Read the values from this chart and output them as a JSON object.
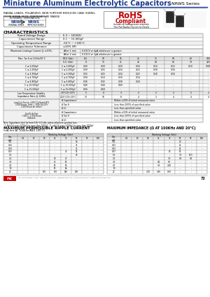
{
  "title": "Miniature Aluminum Electrolytic Capacitors",
  "series": "NRWS Series",
  "subtitle1": "RADIAL LEADS, POLARIZED, NEW FURTHER REDUCED CASE SIZING,",
  "subtitle2": "FROM NRWA WIDE TEMPERATURE RANGE",
  "rohs_sub": "Includes all homogeneous materials",
  "rohs_note": "*See Part Number System for Details",
  "ext_temp": "EXTENDED TEMPERATURE",
  "label_left": "NRWA",
  "label_right": "NRWS",
  "desc_left": "ORIGINAL SERIES",
  "desc_right": "IMPROVED SERIES",
  "chars_title": "CHARACTERISTICS",
  "char_rows": [
    [
      "Rated Voltage Range",
      "6.3 ~ 100VDC"
    ],
    [
      "Capacitance Range",
      "0.1 ~ 15,000μF"
    ],
    [
      "Operating Temperature Range",
      "-55°C ~ +105°C"
    ],
    [
      "Capacitance Tolerance",
      "±20% (M)"
    ]
  ],
  "leakage_label": "Maximum Leakage Current @ ±20%:",
  "leakage_after1": "After 1 min",
  "leakage_val1": "0.03CV or 4μA whichever is greater",
  "leakage_after2": "After 2 min",
  "leakage_val2": "0.01CV or 3μA whichever is greater",
  "tan_label": "Max. Tan δ at 120Hz/20°C",
  "tan_cols": [
    "W.V. (Vdc)",
    "6.3",
    "10",
    "16",
    "25",
    "35",
    "50",
    "63",
    "100"
  ],
  "tan_sv": [
    "S.V. (Vdc)",
    "8",
    "13",
    "21",
    "32",
    "44",
    "63",
    "79",
    "125"
  ],
  "tan_rows": [
    [
      "C ≤ 1,000μF",
      "0.26",
      "0.20",
      "0.20",
      "0.16",
      "0.14",
      "0.12",
      "0.10",
      "0.08"
    ],
    [
      "C ≤ 2,200μF",
      "0.30",
      "0.25",
      "0.24",
      "0.22",
      "0.18",
      "0.16",
      "-",
      "-"
    ],
    [
      "C ≤ 3,300μF",
      "0.32",
      "0.25",
      "0.24",
      "0.22",
      "0.18",
      "0.16",
      "-",
      "-"
    ],
    [
      "C ≤ 4,700μF",
      "0.34",
      "0.14",
      "0.16",
      "0.14",
      "-",
      "-",
      "-",
      "-"
    ],
    [
      "C ≤ 6,800μF",
      "0.36",
      "0.32",
      "0.28",
      "0.24",
      "-",
      "-",
      "-",
      "-"
    ],
    [
      "C ≤ 10,000μF",
      "0.46",
      "0.44",
      "0.60",
      "-",
      "-",
      "-",
      "-",
      "-"
    ],
    [
      "C ≤ 15,000μF",
      "0.56",
      "0.60",
      "-",
      "-",
      "-",
      "-",
      "-",
      "-"
    ]
  ],
  "low_temp_label": "Low Temperature Stability\nImpedance Ratio @ 120Hz",
  "low_temp_rows": [
    [
      "2.0°C/Z+20°C",
      "5",
      "4",
      "3",
      "2",
      "2",
      "2",
      "2",
      "2"
    ],
    [
      "Z-25°C/Z+20°C",
      "13",
      "10",
      "8",
      "4",
      "3",
      "4",
      "4",
      "4"
    ]
  ],
  "load_label": "Load Life Test at +105°C & Rated W.V.\n2,000 Hours, 1kHz ~ 100k Qty 50+\n1,000 Hours All others",
  "load_rows": [
    [
      "Δ Capacitance",
      "Within ±20% of initial measured value"
    ],
    [
      "Δ Tan δ",
      "Less than 200% of specified value"
    ],
    [
      "Δ LC",
      "Less than specified value"
    ]
  ],
  "shelf_label": "Shelf Life Test\n+105°C, 1,000 Hours\nUnbiased",
  "shelf_rows": [
    [
      "Δ Capacitance",
      "Within ±15% of initial measured value"
    ],
    [
      "Δ Tan δ",
      "Less than 200% of specified value"
    ],
    [
      "Δ LC",
      "Less than specified value"
    ]
  ],
  "note1": "Note: Capacitance shall be from 0.25~0.1 kHz, unless otherwise specified here.",
  "note2": "*1. Add 0.6 every 1000μF for more than 1000μF  *2. add 0.6 every 5000μF for more than 1000μF",
  "ripple_title": "MAXIMUM PERMISSIBLE RIPPLE CURRENT",
  "ripple_sub": "(mA rms AT 100KHz AND 105°C)",
  "ripple_caps": [
    "Cap. (μF)",
    "0.1",
    "0.22",
    "0.33",
    "0.47",
    "1.0",
    "2.2",
    "3.3",
    "4.7",
    "10",
    "22"
  ],
  "ripple_wv_cols": [
    "6.3",
    "10",
    "16",
    "25",
    "35",
    "50",
    "63",
    "100"
  ],
  "ripple_vals": [
    [
      "-",
      "-",
      "-",
      "-",
      "-",
      "30",
      "-",
      "-"
    ],
    [
      "-",
      "-",
      "-",
      "-",
      "-",
      "35",
      "-",
      "-"
    ],
    [
      "-",
      "-",
      "-",
      "-",
      "-",
      "35",
      "-",
      "-"
    ],
    [
      "-",
      "-",
      "-",
      "-",
      "20",
      "15",
      "-",
      "-"
    ],
    [
      "-",
      "-",
      "-",
      "-",
      "-",
      "30",
      "-",
      "-"
    ],
    [
      "-",
      "-",
      "-",
      "40",
      "45",
      "-",
      "-",
      "-"
    ],
    [
      "-",
      "-",
      "-",
      "45",
      "50",
      "-",
      "-",
      "-"
    ],
    [
      "-",
      "-",
      "-",
      "50",
      "56",
      "-",
      "-",
      "-"
    ],
    [
      "-",
      "-",
      "-",
      "65",
      "64",
      "-",
      "-",
      "-"
    ],
    [
      "-",
      "-",
      "110",
      "170",
      "140",
      "230",
      "-",
      "-"
    ]
  ],
  "imped_title": "MAXIMUM IMPEDANCE (Ω AT 100KHz AND 20°C)",
  "imped_caps": [
    "Cap. (μF)",
    "0.1",
    "0.22",
    "0.33",
    "0.47",
    "1.0",
    "2.2",
    "3.3",
    "4.7",
    "10",
    "22"
  ],
  "imped_wv_cols": [
    "6.3",
    "10",
    "16",
    "25",
    "35",
    "50",
    "63",
    "100"
  ],
  "imped_vals": [
    [
      "-",
      "-",
      "-",
      "-",
      "-",
      "20",
      "-",
      "-"
    ],
    [
      "-",
      "-",
      "-",
      "-",
      "-",
      "21",
      "-",
      "-"
    ],
    [
      "-",
      "-",
      "-",
      "-",
      "-",
      "15",
      "-",
      "-"
    ],
    [
      "-",
      "-",
      "-",
      "-",
      "10",
      "15",
      "-",
      "-"
    ],
    [
      "-",
      "-",
      "-",
      "-",
      "-",
      "7.0",
      "10.5",
      "-"
    ],
    [
      "-",
      "-",
      "-",
      "-",
      "3.5",
      "4.5",
      "6.9",
      "-"
    ],
    [
      "-",
      "-",
      "-",
      "4.0",
      "5.0",
      "-",
      "-",
      "-"
    ],
    [
      "-",
      "-",
      "-",
      "3.0",
      "4.20",
      "-",
      "-",
      "-"
    ],
    [
      "-",
      "-",
      "-",
      "-",
      "-",
      "-",
      "-",
      "-"
    ],
    [
      "-",
      "-",
      "2.00",
      "2.40",
      "0.93",
      "-",
      "-",
      "-"
    ]
  ],
  "footer": "NIC COMPONENTS CORP.  www.niccomp.com  | www.BetaEF.com  | www.niccomp.de  | www.HPmagnetics.com",
  "page_num": "72",
  "bg_color": "#ffffff",
  "header_blue": "#1a3a8a",
  "table_border": "#999999",
  "header_bg": "#e8e8e8"
}
